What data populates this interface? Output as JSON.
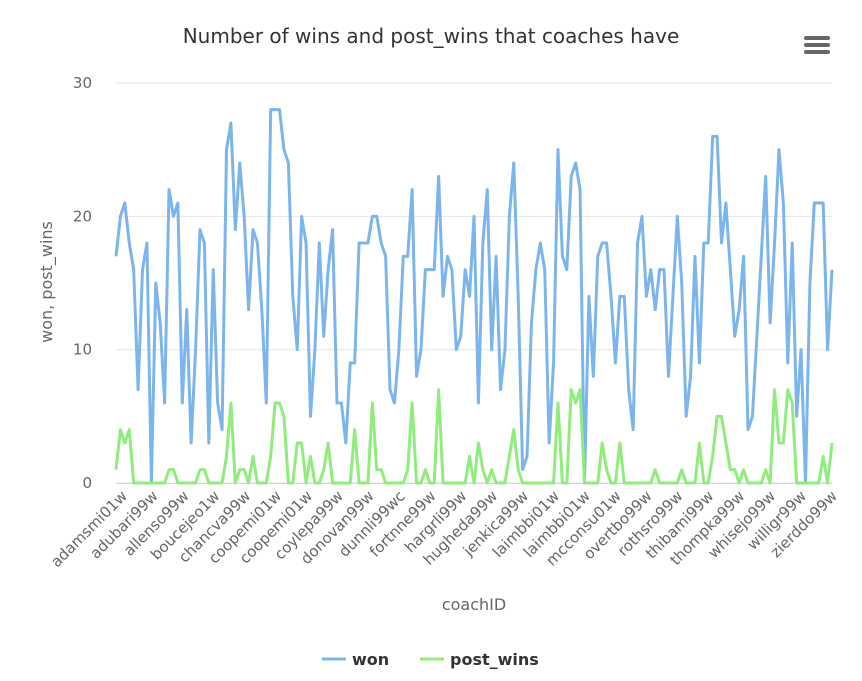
{
  "menu": {
    "icon": "hamburger-menu-icon"
  },
  "chart_data": {
    "type": "line",
    "title": "Number of wins and post_wins that coaches have",
    "xlabel": "coachID",
    "ylabel": "won, post_wins",
    "ylim": [
      0,
      30
    ],
    "yticks": [
      0,
      10,
      20,
      30
    ],
    "grid": true,
    "legend_position": "bottom-center",
    "x_tick_labels": [
      "adamsmi01w",
      "adubari99w",
      "allenso99w",
      "boucejeo1w",
      "chancva99w",
      "coopemi01w",
      "coopemi01w",
      "coylepa99w",
      "donovan99w",
      "dunnli99wc",
      "fortnne99w",
      "hargrli99w",
      "hugheda99w",
      "jenkica99w",
      "laimbbi01w",
      "laimbbi01w",
      "mcconsu01w",
      "overtbo99w",
      "rothsro99w",
      "thibami99w",
      "thompka99w",
      "whisejo99w",
      "willigr99w",
      "zierddo99w"
    ],
    "series": [
      {
        "name": "won",
        "color": "#7cb5ec",
        "values": [
          17,
          20,
          21,
          18,
          16,
          7,
          16,
          18,
          0,
          15,
          12,
          6,
          22,
          20,
          21,
          6,
          13,
          3,
          10,
          19,
          18,
          3,
          16,
          6,
          4,
          25,
          27,
          19,
          24,
          20,
          13,
          19,
          18,
          13,
          6,
          28,
          28,
          28,
          25,
          24,
          14,
          10,
          20,
          18,
          5,
          10,
          18,
          11,
          16,
          19,
          6,
          6,
          3,
          9,
          9,
          18,
          18,
          18,
          20,
          20,
          18,
          17,
          7,
          6,
          10,
          17,
          17,
          22,
          8,
          10,
          16,
          16,
          16,
          23,
          14,
          17,
          16,
          10,
          11,
          16,
          14,
          20,
          6,
          18,
          22,
          10,
          17,
          7,
          10,
          20,
          24,
          14,
          1,
          2,
          12,
          16,
          18,
          16,
          3,
          9,
          25,
          17,
          16,
          23,
          24,
          22,
          0,
          14,
          8,
          17,
          18,
          18,
          14,
          9,
          14,
          14,
          7,
          4,
          18,
          20,
          14,
          16,
          13,
          16,
          16,
          8,
          14,
          20,
          15,
          5,
          8,
          17,
          9,
          18,
          18,
          26,
          26,
          18,
          21,
          16,
          11,
          13,
          17,
          4,
          5,
          11,
          17,
          23,
          12,
          18,
          25,
          21,
          9,
          18,
          5,
          10,
          0,
          15,
          21,
          21,
          21,
          10,
          16
        ],
        "approximate": true
      },
      {
        "name": "post_wins",
        "color": "#90ed7d",
        "values": [
          1,
          4,
          3,
          4,
          0,
          0,
          0,
          0,
          0,
          0,
          0,
          0,
          1,
          1,
          0,
          0,
          0,
          0,
          0,
          1,
          1,
          0,
          0,
          0,
          0,
          2,
          6,
          0,
          1,
          1,
          0,
          2,
          0,
          0,
          0,
          2,
          6,
          6,
          5,
          0,
          0,
          3,
          3,
          0,
          2,
          0,
          0,
          1,
          3,
          0,
          0,
          0,
          0,
          0,
          4,
          0,
          0,
          0,
          6,
          1,
          1,
          0,
          0,
          0,
          0,
          0,
          1,
          6,
          0,
          0,
          1,
          0,
          0,
          7,
          0,
          0,
          0,
          0,
          0,
          0,
          2,
          0,
          3,
          1,
          0,
          1,
          0,
          0,
          0,
          2,
          4,
          1,
          0,
          0,
          0,
          0,
          0,
          0,
          0,
          0,
          6,
          0,
          0,
          7,
          6,
          7,
          0,
          0,
          0,
          0,
          3,
          1,
          0,
          0,
          3,
          0,
          0,
          0,
          0,
          0,
          0,
          0,
          1,
          0,
          0,
          0,
          0,
          0,
          1,
          0,
          0,
          0,
          3,
          0,
          0,
          2,
          5,
          5,
          3,
          1,
          1,
          0,
          1,
          0,
          0,
          0,
          0,
          1,
          0,
          7,
          3,
          3,
          7,
          6,
          0,
          0,
          0,
          0,
          0,
          0,
          2,
          0,
          3
        ],
        "approximate": true
      }
    ]
  }
}
